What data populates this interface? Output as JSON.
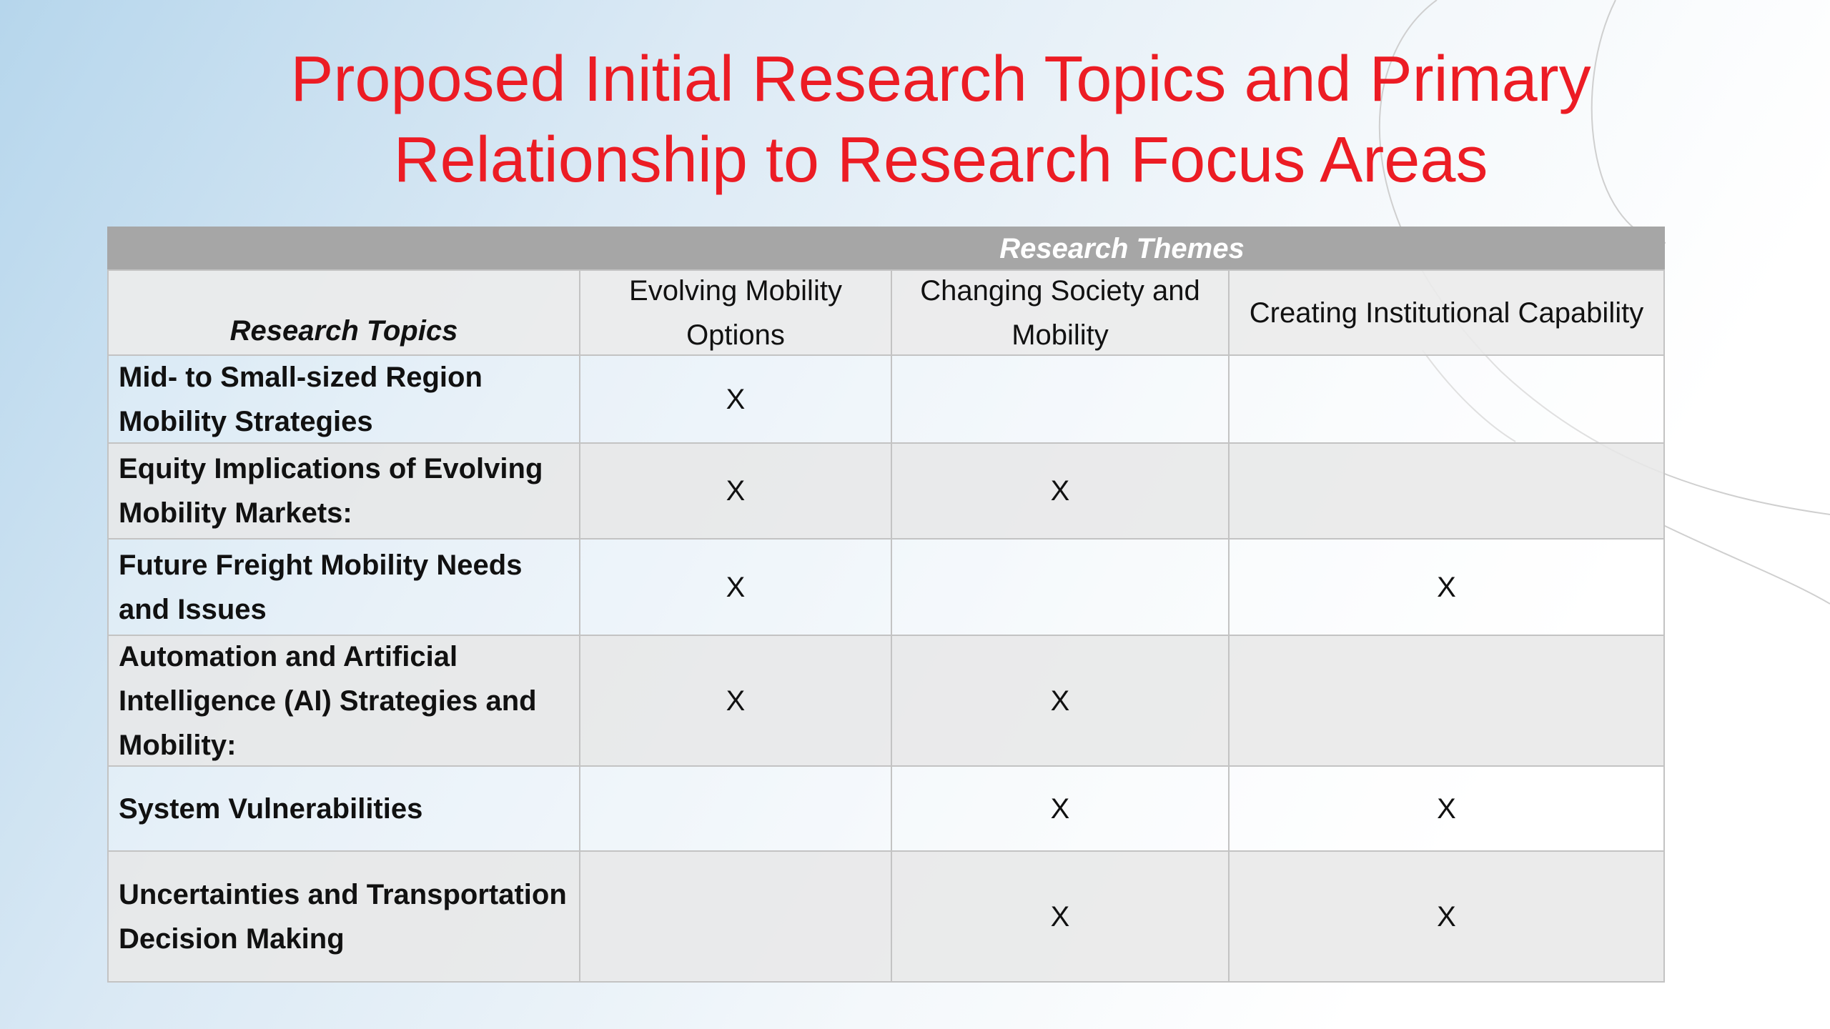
{
  "title": [
    "Proposed Initial Research Topics and Primary",
    "Relationship to Research Focus Areas"
  ],
  "table": {
    "group_header": "Research Themes",
    "header": [
      "Research Topics",
      "Evolving Mobility Options",
      "Changing Society and Mobility",
      "Creating Institutional Capability"
    ],
    "rows": [
      {
        "topic": "Mid- to Small-sized Region Mobility Strategies",
        "cells": [
          "X",
          null,
          null
        ]
      },
      {
        "topic": "Equity Implications of Evolving Mobility Markets:",
        "cells": [
          "X",
          "X",
          null
        ]
      },
      {
        "topic": "Future Freight Mobility Needs and Issues",
        "cells": [
          "X",
          null,
          "X"
        ]
      },
      {
        "topic": "Automation and Artificial Intelligence (AI) Strategies and Mobility:",
        "cells": [
          "X",
          "X",
          null
        ]
      },
      {
        "topic": "System Vulnerabilities",
        "cells": [
          null,
          "X",
          "X"
        ]
      },
      {
        "topic": "Uncertainties and Transportation Decision Making",
        "cells": [
          null,
          "X",
          "X"
        ]
      }
    ]
  }
}
